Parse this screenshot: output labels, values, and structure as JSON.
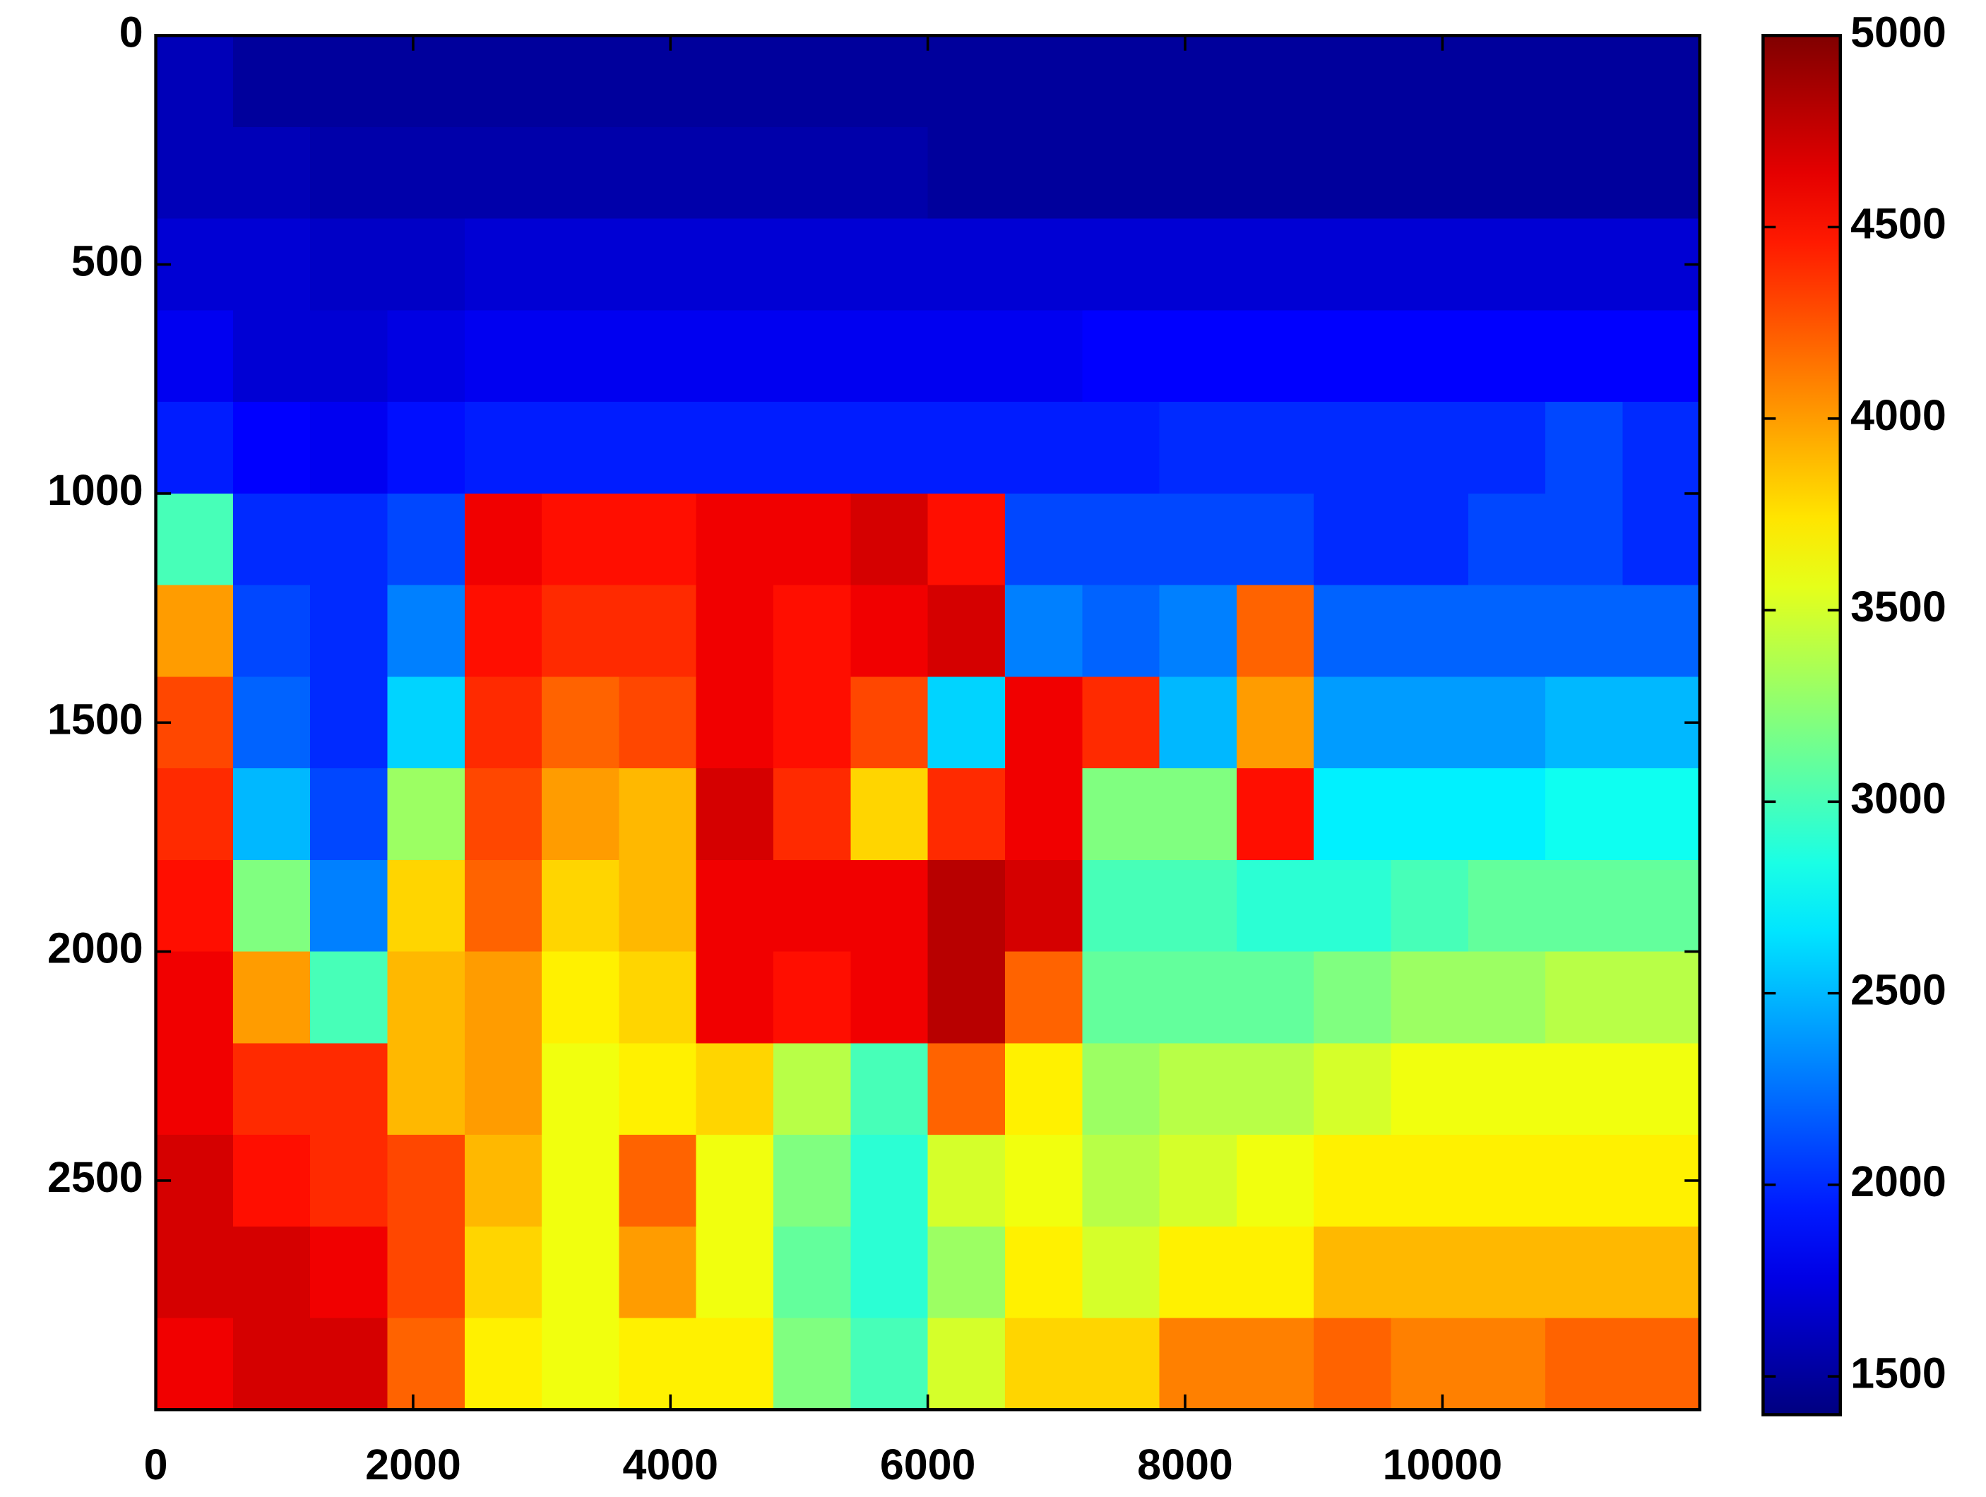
{
  "chart_data": {
    "type": "heatmap",
    "colormap": "jet",
    "x": [
      300,
      900,
      1500,
      2100,
      2700,
      3300,
      3900,
      4500,
      5100,
      5700,
      6300,
      6900,
      7500,
      8100,
      8700,
      9300,
      9900,
      10500,
      11100,
      11700
    ],
    "y": [
      100,
      300,
      500,
      700,
      900,
      1100,
      1300,
      1500,
      1700,
      1900,
      2100,
      2300,
      2500,
      2700,
      2900
    ],
    "z": [
      [
        1600,
        1500,
        1500,
        1500,
        1500,
        1500,
        1500,
        1500,
        1500,
        1500,
        1500,
        1500,
        1500,
        1500,
        1500,
        1500,
        1500,
        1500,
        1500,
        1500
      ],
      [
        1600,
        1600,
        1550,
        1550,
        1550,
        1550,
        1550,
        1550,
        1550,
        1550,
        1500,
        1500,
        1500,
        1500,
        1500,
        1500,
        1500,
        1500,
        1500,
        1500
      ],
      [
        1700,
        1700,
        1650,
        1650,
        1700,
        1700,
        1700,
        1700,
        1700,
        1700,
        1700,
        1700,
        1700,
        1700,
        1700,
        1700,
        1700,
        1700,
        1700,
        1700
      ],
      [
        1800,
        1700,
        1700,
        1750,
        1800,
        1800,
        1800,
        1800,
        1800,
        1800,
        1800,
        1800,
        1850,
        1850,
        1850,
        1850,
        1850,
        1850,
        1850,
        1850
      ],
      [
        1950,
        1850,
        1800,
        1900,
        1950,
        1950,
        1950,
        1950,
        1950,
        1950,
        1950,
        1950,
        1950,
        2000,
        2000,
        2000,
        2000,
        2000,
        2100,
        2000
      ],
      [
        3000,
        2000,
        2000,
        2100,
        4600,
        4500,
        4500,
        4600,
        4600,
        4700,
        4500,
        2100,
        2100,
        2100,
        2100,
        2000,
        2000,
        2100,
        2100,
        2000
      ],
      [
        4000,
        2100,
        2000,
        2300,
        4500,
        4400,
        4400,
        4600,
        4500,
        4600,
        4700,
        2300,
        2200,
        2300,
        4200,
        2200,
        2200,
        2200,
        2200,
        2200
      ],
      [
        4300,
        2200,
        2000,
        2600,
        4400,
        4200,
        4300,
        4600,
        4500,
        4300,
        2600,
        4600,
        4400,
        2500,
        4000,
        2400,
        2400,
        2400,
        2500,
        2500
      ],
      [
        4400,
        2500,
        2100,
        3300,
        4300,
        4000,
        3900,
        4700,
        4400,
        3800,
        4400,
        4600,
        3200,
        3200,
        4500,
        2700,
        2700,
        2700,
        2800,
        2800
      ],
      [
        4500,
        3200,
        2300,
        3800,
        4200,
        3800,
        3900,
        4600,
        4600,
        4600,
        4800,
        4700,
        3000,
        3000,
        2900,
        2900,
        3000,
        3100,
        3100,
        3100
      ],
      [
        4600,
        4000,
        3000,
        3900,
        4000,
        3700,
        3800,
        4600,
        4500,
        4600,
        4800,
        4200,
        3100,
        3100,
        3100,
        3200,
        3300,
        3300,
        3400,
        3400
      ],
      [
        4600,
        4400,
        4400,
        3900,
        4000,
        3600,
        3700,
        3800,
        3400,
        3000,
        4200,
        3700,
        3300,
        3400,
        3400,
        3500,
        3600,
        3600,
        3600,
        3600
      ],
      [
        4700,
        4500,
        4400,
        4300,
        3900,
        3600,
        4200,
        3600,
        3200,
        2900,
        3500,
        3600,
        3400,
        3500,
        3600,
        3700,
        3700,
        3700,
        3700,
        3700
      ],
      [
        4700,
        4700,
        4600,
        4300,
        3800,
        3600,
        4000,
        3600,
        3100,
        2900,
        3300,
        3700,
        3500,
        3700,
        3700,
        3900,
        3900,
        3900,
        3900,
        3900
      ],
      [
        4600,
        4700,
        4700,
        4200,
        3700,
        3600,
        3700,
        3700,
        3200,
        3000,
        3500,
        3800,
        3800,
        4100,
        4100,
        4200,
        4100,
        4100,
        4200,
        4200
      ]
    ],
    "xlim": [
      0,
      12000
    ],
    "ylim": [
      3000,
      0
    ],
    "xticks": [
      0,
      2000,
      4000,
      6000,
      8000,
      10000
    ],
    "yticks": [
      0,
      500,
      1000,
      1500,
      2000,
      2500
    ],
    "clim": [
      1400,
      5000
    ],
    "cticks": [
      1500,
      2000,
      2500,
      3000,
      3500,
      4000,
      4500,
      5000
    ]
  }
}
